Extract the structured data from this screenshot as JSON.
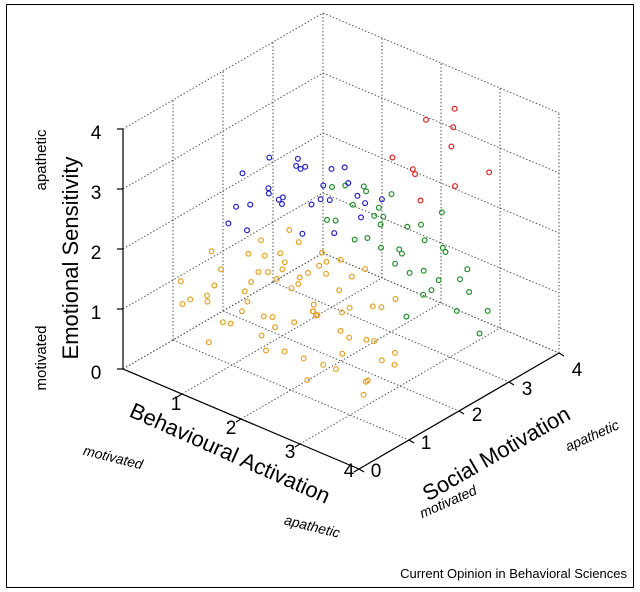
{
  "chart_data": {
    "type": "scatter",
    "projection": "3d",
    "grid": true,
    "xlabel": "Behavioural Activation",
    "ylabel": "Social Motivation",
    "zlabel": "Emotional Sensitivity",
    "xlim": [
      0,
      4
    ],
    "ylim": [
      0,
      4
    ],
    "zlim": [
      0,
      4
    ],
    "x_ticks": [
      "1",
      "2",
      "3",
      "4"
    ],
    "y_ticks": [
      "0",
      "1",
      "2",
      "3",
      "4"
    ],
    "z_ticks": [
      "0",
      "1",
      "2",
      "3",
      "4"
    ],
    "x_poles": {
      "low": "motivated",
      "high": "apathetic"
    },
    "y_poles": {
      "low": "motivated",
      "high": "apathetic"
    },
    "z_poles": {
      "low": "motivated",
      "high": "apathetic"
    },
    "series": [
      {
        "color": "#e8a020",
        "points": [
          [
            0.5,
            0.6,
            1.0
          ],
          [
            0.8,
            0.4,
            1.3
          ],
          [
            1.1,
            0.7,
            0.9
          ],
          [
            1.4,
            0.5,
            1.1
          ],
          [
            0.7,
            1.0,
            1.2
          ],
          [
            1.0,
            1.2,
            0.8
          ],
          [
            1.3,
            0.9,
            1.4
          ],
          [
            1.6,
            1.1,
            1.0
          ],
          [
            0.9,
            1.5,
            1.1
          ],
          [
            1.2,
            1.4,
            0.7
          ],
          [
            1.5,
            1.6,
            1.2
          ],
          [
            1.8,
            1.3,
            0.9
          ],
          [
            0.6,
            1.8,
            1.3
          ],
          [
            1.0,
            1.9,
            1.0
          ],
          [
            1.3,
            2.0,
            1.1
          ],
          [
            1.7,
            1.8,
            0.8
          ],
          [
            2.0,
            1.5,
            1.0
          ],
          [
            2.2,
            1.2,
            1.3
          ],
          [
            1.9,
            0.8,
            1.1
          ],
          [
            2.3,
            0.9,
            0.7
          ],
          [
            2.5,
            1.4,
            1.0
          ],
          [
            2.1,
            1.9,
            0.9
          ],
          [
            2.4,
            1.7,
            1.2
          ],
          [
            2.7,
            1.2,
            0.8
          ],
          [
            2.9,
            1.6,
            0.9
          ],
          [
            2.6,
            2.1,
            1.1
          ],
          [
            3.0,
            1.9,
            0.6
          ],
          [
            3.2,
            1.4,
            0.8
          ],
          [
            2.8,
            0.7,
            0.9
          ],
          [
            3.3,
            1.0,
            0.7
          ],
          [
            3.5,
            1.3,
            0.9
          ],
          [
            0.4,
            1.3,
            1.5
          ],
          [
            0.8,
            2.2,
            1.2
          ],
          [
            1.1,
            2.4,
            0.9
          ],
          [
            1.5,
            2.3,
            1.3
          ],
          [
            1.8,
            2.2,
            1.0
          ],
          [
            2.2,
            2.4,
            0.8
          ],
          [
            1.4,
            2.7,
            1.1
          ],
          [
            1.0,
            2.8,
            1.0
          ],
          [
            0.7,
            2.5,
            1.4
          ],
          [
            1.9,
            2.6,
            1.2
          ],
          [
            2.5,
            2.5,
            1.0
          ],
          [
            0.9,
            0.9,
            1.6
          ],
          [
            1.2,
            0.3,
            0.8
          ],
          [
            1.6,
            0.6,
            1.5
          ],
          [
            2.0,
            0.5,
            0.9
          ],
          [
            2.4,
            0.4,
            1.1
          ],
          [
            2.7,
            0.5,
            0.7
          ],
          [
            3.1,
            0.6,
            1.0
          ],
          [
            3.4,
            0.8,
            0.6
          ],
          [
            1.3,
            1.7,
            1.5
          ],
          [
            1.7,
            1.5,
            1.4
          ],
          [
            0.6,
            2.0,
            0.9
          ],
          [
            1.1,
            1.6,
            1.3
          ],
          [
            2.3,
            1.1,
            1.5
          ],
          [
            1.5,
            1.0,
            0.7
          ],
          [
            0.5,
            1.1,
            0.8
          ],
          [
            0.3,
            0.8,
            1.2
          ],
          [
            1.8,
            1.8,
            1.6
          ],
          [
            2.1,
            2.1,
            1.4
          ],
          [
            1.6,
            2.0,
            0.6
          ],
          [
            2.6,
            1.8,
            0.7
          ],
          [
            2.9,
            1.1,
            1.2
          ],
          [
            3.1,
            1.2,
            0.5
          ],
          [
            1.0,
            0.5,
            1.4
          ],
          [
            1.3,
            1.3,
            1.8
          ],
          [
            0.9,
            1.7,
            1.7
          ],
          [
            2.0,
            1.7,
            1.6
          ],
          [
            1.2,
            2.1,
            1.6
          ],
          [
            1.6,
            1.3,
            1.7
          ]
        ]
      },
      {
        "color": "#1f8f2a",
        "points": [
          [
            1.0,
            2.9,
            1.5
          ],
          [
            1.3,
            3.1,
            1.2
          ],
          [
            1.6,
            3.0,
            1.4
          ],
          [
            1.9,
            3.2,
            1.0
          ],
          [
            1.1,
            3.3,
            1.6
          ],
          [
            1.4,
            3.5,
            1.3
          ],
          [
            1.8,
            3.4,
            1.1
          ],
          [
            2.1,
            3.1,
            1.3
          ],
          [
            2.3,
            3.3,
            1.0
          ],
          [
            2.0,
            2.8,
            1.5
          ],
          [
            2.4,
            2.9,
            1.2
          ],
          [
            2.6,
            3.1,
            0.9
          ],
          [
            2.8,
            2.7,
            1.1
          ],
          [
            1.2,
            3.7,
            1.4
          ],
          [
            1.6,
            3.8,
            1.2
          ],
          [
            2.0,
            3.6,
            1.5
          ],
          [
            2.2,
            3.8,
            1.1
          ],
          [
            2.5,
            3.5,
            1.3
          ],
          [
            2.7,
            3.7,
            1.0
          ],
          [
            3.0,
            3.2,
            1.2
          ],
          [
            3.2,
            2.9,
            0.9
          ],
          [
            2.9,
            3.5,
            0.8
          ],
          [
            1.4,
            2.6,
            1.8
          ],
          [
            1.0,
            3.0,
            2.0
          ],
          [
            1.2,
            3.4,
            1.9
          ],
          [
            1.7,
            3.2,
            1.7
          ],
          [
            0.8,
            3.5,
            1.7
          ],
          [
            0.9,
            3.8,
            1.5
          ],
          [
            1.5,
            3.6,
            1.8
          ],
          [
            2.3,
            3.6,
            0.7
          ],
          [
            3.3,
            3.4,
            0.7
          ],
          [
            3.5,
            3.0,
            0.6
          ],
          [
            2.6,
            2.6,
            0.7
          ],
          [
            1.8,
            2.9,
            1.9
          ],
          [
            2.1,
            3.9,
            1.6
          ],
          [
            2.4,
            3.2,
            1.6
          ]
        ]
      },
      {
        "color": "#2020c8",
        "points": [
          [
            0.6,
            1.4,
            2.0
          ],
          [
            0.5,
            1.8,
            2.6
          ],
          [
            0.8,
            1.6,
            2.3
          ],
          [
            1.0,
            2.0,
            2.2
          ],
          [
            1.2,
            1.7,
            2.5
          ],
          [
            1.4,
            2.3,
            2.3
          ],
          [
            0.9,
            2.4,
            2.6
          ],
          [
            1.1,
            2.2,
            2.9
          ],
          [
            1.5,
            2.0,
            2.4
          ],
          [
            1.7,
            2.5,
            2.6
          ],
          [
            1.3,
            2.6,
            2.1
          ],
          [
            1.6,
            2.8,
            2.2
          ],
          [
            0.7,
            2.1,
            2.8
          ],
          [
            1.9,
            2.6,
            2.3
          ],
          [
            1.2,
            1.5,
            2.7
          ],
          [
            1.4,
            1.9,
            3.0
          ],
          [
            0.8,
            2.7,
            2.4
          ],
          [
            1.0,
            1.3,
            2.1
          ],
          [
            1.8,
            2.1,
            2.0
          ],
          [
            2.0,
            2.4,
            2.2
          ],
          [
            1.5,
            2.4,
            2.8
          ],
          [
            1.1,
            1.9,
            2.4
          ],
          [
            0.6,
            2.2,
            2.2
          ],
          [
            1.3,
            2.9,
            2.5
          ],
          [
            2.1,
            2.7,
            2.4
          ],
          [
            1.6,
            1.7,
            2.1
          ],
          [
            0.9,
            1.2,
            2.5
          ],
          [
            1.7,
            2.0,
            2.8
          ]
        ]
      },
      {
        "color": "#e02020",
        "points": [
          [
            1.6,
            3.5,
            2.5
          ],
          [
            2.0,
            3.7,
            3.2
          ],
          [
            2.4,
            3.8,
            3.5
          ],
          [
            2.6,
            3.5,
            3.1
          ],
          [
            2.8,
            3.3,
            3.6
          ],
          [
            2.2,
            3.2,
            2.7
          ],
          [
            3.0,
            3.1,
            2.8
          ],
          [
            1.9,
            3.6,
            2.3
          ],
          [
            2.9,
            3.9,
            2.6
          ],
          [
            2.5,
            3.0,
            2.4
          ]
        ]
      }
    ]
  },
  "credit": "Current Opinion in Behavioral Sciences"
}
